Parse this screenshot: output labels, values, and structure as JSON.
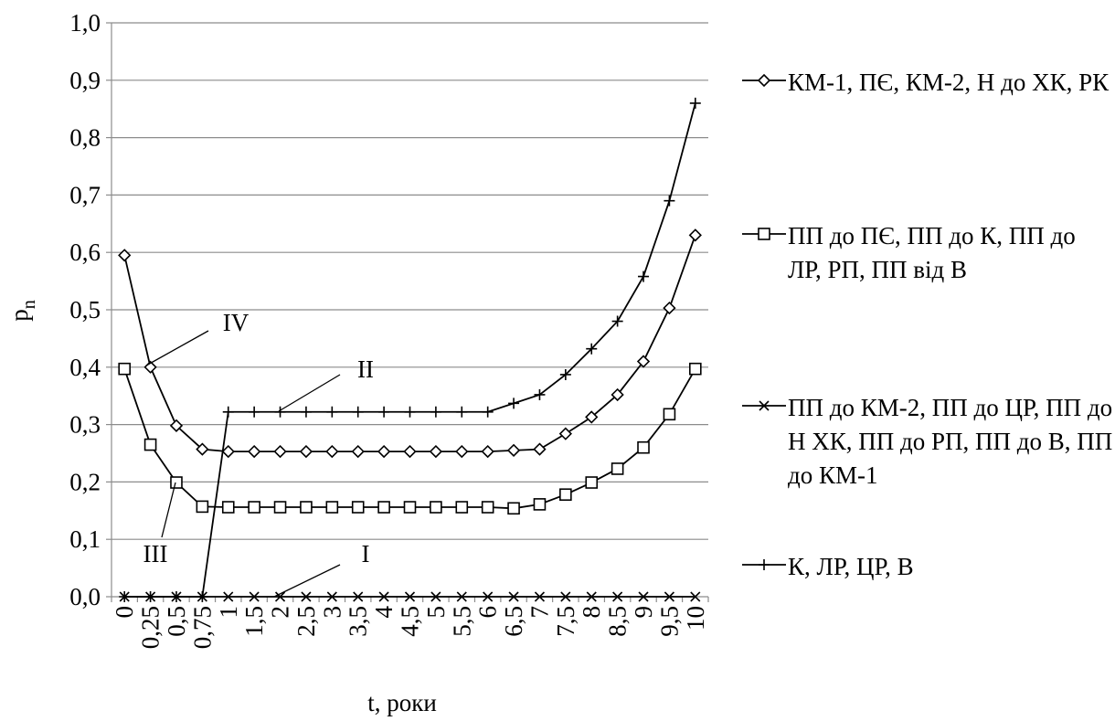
{
  "chart_data": {
    "type": "line",
    "x_label": "t, роки",
    "y_label": "p",
    "y_label_sub": "n",
    "categories": [
      "0",
      "0,25",
      "0,5",
      "0,75",
      "1",
      "1,5",
      "2",
      "2,5",
      "3",
      "3,5",
      "4",
      "4,5",
      "5",
      "5,5",
      "6",
      "6,5",
      "7",
      "7,5",
      "8",
      "8,5",
      "9",
      "9,5",
      "10"
    ],
    "ylim": [
      0,
      1
    ],
    "yticks": [
      {
        "value": 0,
        "label": "0,0"
      },
      {
        "value": 0.1,
        "label": "0,1"
      },
      {
        "value": 0.2,
        "label": "0,2"
      },
      {
        "value": 0.3,
        "label": "0,3"
      },
      {
        "value": 0.4,
        "label": "0,4"
      },
      {
        "value": 0.5,
        "label": "0,5"
      },
      {
        "value": 0.6,
        "label": "0,6"
      },
      {
        "value": 0.7,
        "label": "0,7"
      },
      {
        "value": 0.8,
        "label": "0,8"
      },
      {
        "value": 0.9,
        "label": "0,9"
      },
      {
        "value": 1,
        "label": "1,0"
      }
    ],
    "grid": true,
    "legend": "right",
    "series": [
      {
        "name": "КМ-1, ПЄ, КМ-2, Н до ХК, РК",
        "color": "#000000",
        "marker": "diamond",
        "values": [
          0.595,
          0.4,
          0.298,
          0.257,
          0.253,
          0.253,
          0.253,
          0.253,
          0.253,
          0.253,
          0.253,
          0.253,
          0.253,
          0.253,
          0.253,
          0.255,
          0.257,
          0.284,
          0.313,
          0.352,
          0.41,
          0.503,
          0.63
        ]
      },
      {
        "name": "ПП до ПЄ, ПП до К, ПП до ЛР, РП, ПП від В",
        "color": "#000000",
        "marker": "square",
        "values": [
          0.397,
          0.265,
          0.199,
          0.157,
          0.156,
          0.156,
          0.156,
          0.156,
          0.156,
          0.156,
          0.156,
          0.156,
          0.156,
          0.156,
          0.156,
          0.154,
          0.161,
          0.178,
          0.199,
          0.223,
          0.26,
          0.318,
          0.397
        ]
      },
      {
        "name": "ПП до КМ-2, ПП до ЦР, ПП до Н ХК, ПП до РП, ПП до В, ПП до КМ-1",
        "color": "#000000",
        "marker": "x",
        "values": [
          0,
          0,
          0,
          0,
          0,
          0,
          0,
          0,
          0,
          0,
          0,
          0,
          0,
          0,
          0,
          0,
          0,
          0,
          0,
          0,
          0,
          0,
          0
        ]
      },
      {
        "name": "К, ЛР, ЦР, В",
        "color": "#000000",
        "marker": "plus",
        "values": [
          0,
          0,
          0,
          0,
          0.322,
          0.322,
          0.322,
          0.322,
          0.322,
          0.322,
          0.322,
          0.322,
          0.322,
          0.322,
          0.322,
          0.337,
          0.352,
          0.387,
          0.432,
          0.48,
          0.558,
          0.69,
          0.86
        ]
      }
    ],
    "annotations": [
      "IV",
      "II",
      "III",
      "I"
    ]
  }
}
